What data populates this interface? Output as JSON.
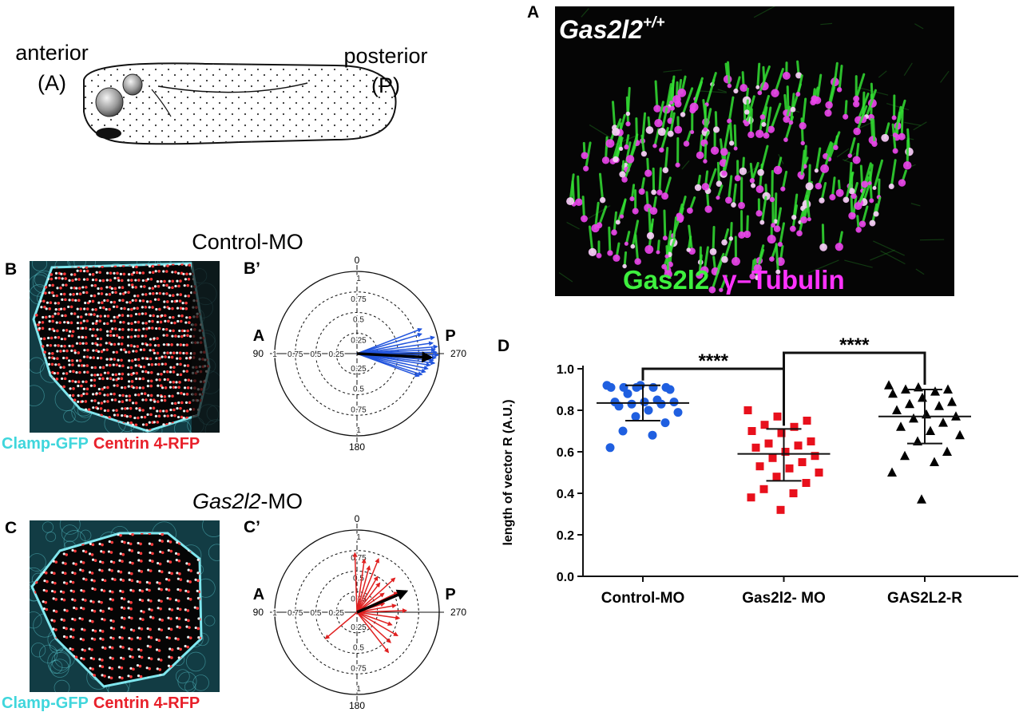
{
  "embryo": {
    "anterior": "anterior",
    "anterior_abbr": "(A)",
    "posterior": "posterior",
    "posterior_abbr": "(P)"
  },
  "panel_a": {
    "letter": "A",
    "genotype": "Gas2l2",
    "genotype_sup": "+/+",
    "stain_green": "Gas2l2",
    "stain_magenta": "γ–Tubulin"
  },
  "panel_b": {
    "letter": "B",
    "title": "Control-MO",
    "stain_cyan": "Clamp-GFP",
    "stain_red": "Centrin 4-RFP"
  },
  "panel_c": {
    "letter": "C",
    "title_italic": "Gas2l2",
    "title_rest": "-MO",
    "stain_cyan": "Clamp-GFP",
    "stain_red": "Centrin 4-RFP"
  },
  "chart_data": [
    {
      "type": "polar",
      "panel": "B’",
      "anterior_label": "A",
      "posterior_label": "P",
      "angle_ticks": [
        0,
        90,
        180,
        270
      ],
      "rings": [
        0.25,
        0.5,
        0.75,
        1
      ],
      "color": "#2255dd",
      "angles": [
        291,
        287,
        282,
        278,
        275,
        273,
        271,
        269,
        267,
        265,
        263,
        261,
        258,
        255,
        252,
        250
      ],
      "lengths": [
        0.84,
        0.82,
        0.96,
        0.93,
        0.98,
        0.95,
        0.97,
        0.99,
        0.96,
        0.93,
        0.95,
        0.9,
        0.88,
        0.86,
        0.83,
        0.8
      ],
      "mean_color": "#000000",
      "mean_angle": 267,
      "mean_length": 0.9
    },
    {
      "type": "polar",
      "panel": "C’",
      "anterior_label": "A",
      "posterior_label": "P",
      "angle_ticks": [
        0,
        90,
        180,
        270
      ],
      "rings": [
        0.25,
        0.5,
        0.75,
        1
      ],
      "color": "#e02020",
      "angles": [
        2,
        352,
        345,
        338,
        330,
        322,
        312,
        305,
        296,
        288,
        280,
        272,
        262,
        250,
        240,
        228,
        218,
        130
      ],
      "lengths": [
        0.72,
        0.65,
        0.58,
        0.7,
        0.5,
        0.45,
        0.62,
        0.4,
        0.55,
        0.35,
        0.48,
        0.6,
        0.52,
        0.45,
        0.57,
        0.55,
        0.62,
        0.5
      ],
      "mean_color": "#000000",
      "mean_angle": 293,
      "mean_length": 0.65
    },
    {
      "type": "dotplot",
      "panel": "D",
      "ylabel": "length of vector R (A.U.)",
      "categories": [
        "Control-MO",
        "Gas2l2- MO",
        "GAS2L2-R"
      ],
      "ylim": [
        0,
        1
      ],
      "yticks": [
        {
          "value": 0,
          "label": "0.0"
        },
        0.2,
        0.4,
        0.6,
        0.8,
        {
          "value": 1,
          "label": "1.0"
        }
      ],
      "significance_labels": [
        "****",
        "****"
      ],
      "groups": [
        {
          "marker": "circle",
          "color": "#1f5fe0",
          "mean": 0.835,
          "sd_low": 0.75,
          "sd_high": 0.92,
          "values": [
            0.92,
            0.91,
            0.91,
            0.91,
            0.91,
            0.91,
            0.92,
            0.9,
            0.88,
            0.85,
            0.84,
            0.84,
            0.84,
            0.83,
            0.83,
            0.82,
            0.8,
            0.79,
            0.77,
            0.74,
            0.7,
            0.68,
            0.62
          ]
        },
        {
          "marker": "square",
          "color": "#e8101c",
          "mean": 0.59,
          "sd_low": 0.46,
          "sd_high": 0.71,
          "values": [
            0.8,
            0.77,
            0.75,
            0.73,
            0.72,
            0.7,
            0.69,
            0.65,
            0.64,
            0.63,
            0.62,
            0.6,
            0.58,
            0.57,
            0.55,
            0.53,
            0.52,
            0.5,
            0.48,
            0.45,
            0.42,
            0.4,
            0.38,
            0.32
          ]
        },
        {
          "marker": "triangle",
          "color": "#000000",
          "mean": 0.77,
          "sd_low": 0.64,
          "sd_high": 0.9,
          "values": [
            0.92,
            0.91,
            0.9,
            0.9,
            0.89,
            0.88,
            0.86,
            0.84,
            0.83,
            0.82,
            0.8,
            0.78,
            0.77,
            0.76,
            0.74,
            0.72,
            0.7,
            0.68,
            0.65,
            0.6,
            0.58,
            0.55,
            0.5,
            0.37
          ]
        }
      ]
    }
  ]
}
